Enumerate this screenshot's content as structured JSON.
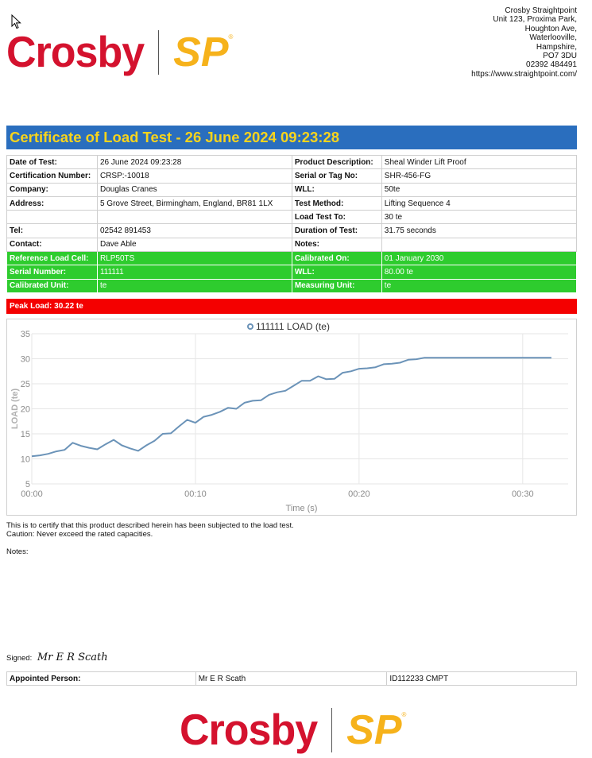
{
  "brand": {
    "crosby": "Crosby",
    "sp": "SP",
    "reg": "®",
    "crosby_color": "#d4122e",
    "sp_color": "#f6b21b"
  },
  "address": {
    "lines": [
      "Crosby Straightpoint",
      "Unit 123, Proxima Park,",
      "Houghton Ave,",
      "Waterlooville,",
      "Hampshire,",
      "PO7 3DU",
      "02392 484491",
      "https://www.straightpoint.com/"
    ]
  },
  "title": "Certificate of Load Test - 26 June 2024 09:23:28",
  "info": {
    "rows": [
      [
        "Date of Test:",
        "26 June 2024 09:23:28",
        "Product Description:",
        "Sheal Winder Lift Proof"
      ],
      [
        "Certification Number:",
        "CRSP:-10018",
        "Serial or Tag No:",
        "SHR-456-FG"
      ],
      [
        "Company:",
        "Douglas Cranes",
        "WLL:",
        "50te"
      ],
      [
        "Address:",
        "5 Grove Street, Birmingham, England, BR81 1LX",
        "Test Method:",
        "Lifting Sequence 4"
      ],
      [
        "",
        "",
        "Load Test To:",
        "30 te"
      ],
      [
        "Tel:",
        "02542 891453",
        "Duration of Test:",
        "31.75 seconds"
      ],
      [
        "Contact:",
        "Dave Able",
        "Notes:",
        ""
      ]
    ],
    "green_rows": [
      [
        "Reference Load Cell:",
        "RLP50TS",
        "Calibrated On:",
        "01 January 2030"
      ],
      [
        "Serial Number:",
        "111111",
        "WLL:",
        "80.00 te"
      ],
      [
        "Calibrated Unit:",
        "te",
        "Measuring Unit:",
        "te"
      ]
    ],
    "green_color": "#2ecc2e"
  },
  "peak_load": "Peak Load: 30.22 te",
  "chart_data": {
    "type": "line",
    "legend": "111111 LOAD (te)",
    "xlabel": "Time (s)",
    "ylabel": "LOAD (te)",
    "xlim": [
      0,
      32
    ],
    "ylim": [
      5,
      35
    ],
    "yticks": [
      5,
      10,
      15,
      20,
      25,
      30,
      35
    ],
    "xticks": [
      0,
      10,
      20,
      30
    ],
    "xtick_labels": [
      "00:00",
      "00:10",
      "00:20",
      "00:30"
    ],
    "grid": true,
    "legend_position": "top-center",
    "series_color": "#6b93b8",
    "series": [
      {
        "name": "111111 LOAD (te)",
        "x": [
          0,
          0.5,
          1.0,
          1.5,
          2.0,
          2.5,
          3.0,
          3.5,
          4.0,
          4.5,
          5.0,
          5.5,
          6.0,
          6.5,
          7.0,
          7.5,
          8.0,
          8.5,
          9.0,
          9.5,
          10.0,
          10.5,
          11.0,
          11.5,
          12.0,
          12.5,
          13.0,
          13.5,
          14.0,
          14.5,
          15.0,
          15.5,
          16.0,
          16.5,
          17.0,
          17.5,
          18.0,
          18.5,
          19.0,
          19.5,
          20.0,
          20.5,
          21.0,
          21.5,
          22.0,
          22.5,
          23.0,
          23.5,
          24.0,
          25.0,
          26.0,
          27.0,
          28.0,
          29.0,
          30.0,
          31.0,
          31.75
        ],
        "y": [
          10.5,
          10.7,
          11.0,
          11.5,
          11.8,
          13.2,
          12.6,
          12.2,
          11.9,
          12.9,
          13.8,
          12.7,
          12.1,
          11.6,
          12.7,
          13.6,
          15.0,
          15.1,
          16.5,
          17.8,
          17.2,
          18.4,
          18.8,
          19.4,
          20.2,
          20.0,
          21.2,
          21.6,
          21.7,
          22.8,
          23.3,
          23.6,
          24.6,
          25.6,
          25.6,
          26.5,
          25.9,
          26.0,
          27.2,
          27.5,
          28.0,
          28.1,
          28.3,
          28.9,
          29.0,
          29.2,
          29.8,
          29.9,
          30.2,
          30.2,
          30.2,
          30.2,
          30.2,
          30.2,
          30.2,
          30.2,
          30.2
        ]
      }
    ]
  },
  "certify_line1": "This is to certify that this product described herein has been subjected to the load test.",
  "certify_line2": "Caution: Never exceed the rated capacities.",
  "notes_label": "Notes:",
  "signed_label": "Signed:",
  "signature": "Mr E R Scath",
  "appointed": {
    "label": "Appointed Person:",
    "name": "Mr E R Scath",
    "id": "ID112233 CMPT"
  }
}
